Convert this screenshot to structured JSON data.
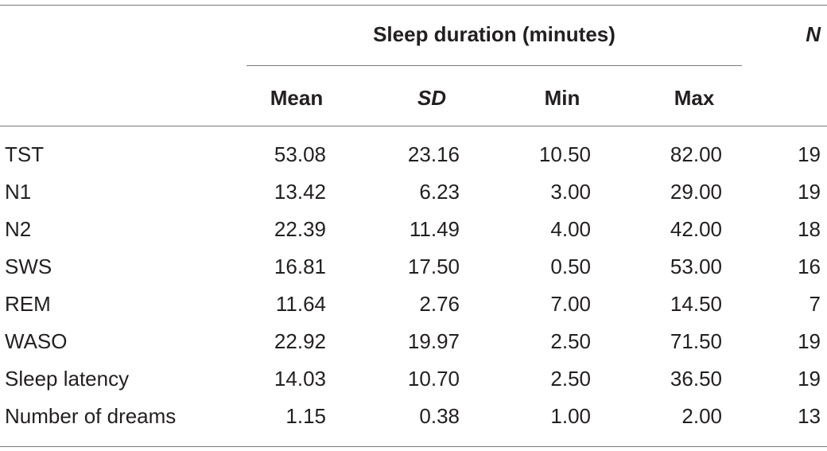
{
  "table": {
    "group_header": "Sleep duration (minutes)",
    "n_header": "N",
    "columns": [
      "Mean",
      "SD",
      "Min",
      "Max"
    ],
    "rows": [
      {
        "label": "TST",
        "mean": "53.08",
        "sd": "23.16",
        "min": "10.50",
        "max": "82.00",
        "n": "19"
      },
      {
        "label": "N1",
        "mean": "13.42",
        "sd": "6.23",
        "min": "3.00",
        "max": "29.00",
        "n": "19"
      },
      {
        "label": "N2",
        "mean": "22.39",
        "sd": "11.49",
        "min": "4.00",
        "max": "42.00",
        "n": "18"
      },
      {
        "label": "SWS",
        "mean": "16.81",
        "sd": "17.50",
        "min": "0.50",
        "max": "53.00",
        "n": "16"
      },
      {
        "label": "REM",
        "mean": "11.64",
        "sd": "2.76",
        "min": "7.00",
        "max": "14.50",
        "n": "7"
      },
      {
        "label": "WASO",
        "mean": "22.92",
        "sd": "19.97",
        "min": "2.50",
        "max": "71.50",
        "n": "19"
      },
      {
        "label": "Sleep latency",
        "mean": "14.03",
        "sd": "10.70",
        "min": "2.50",
        "max": "36.50",
        "n": "19"
      },
      {
        "label": "Number of dreams",
        "mean": "1.15",
        "sd": "0.38",
        "min": "1.00",
        "max": "2.00",
        "n": "13"
      }
    ]
  }
}
